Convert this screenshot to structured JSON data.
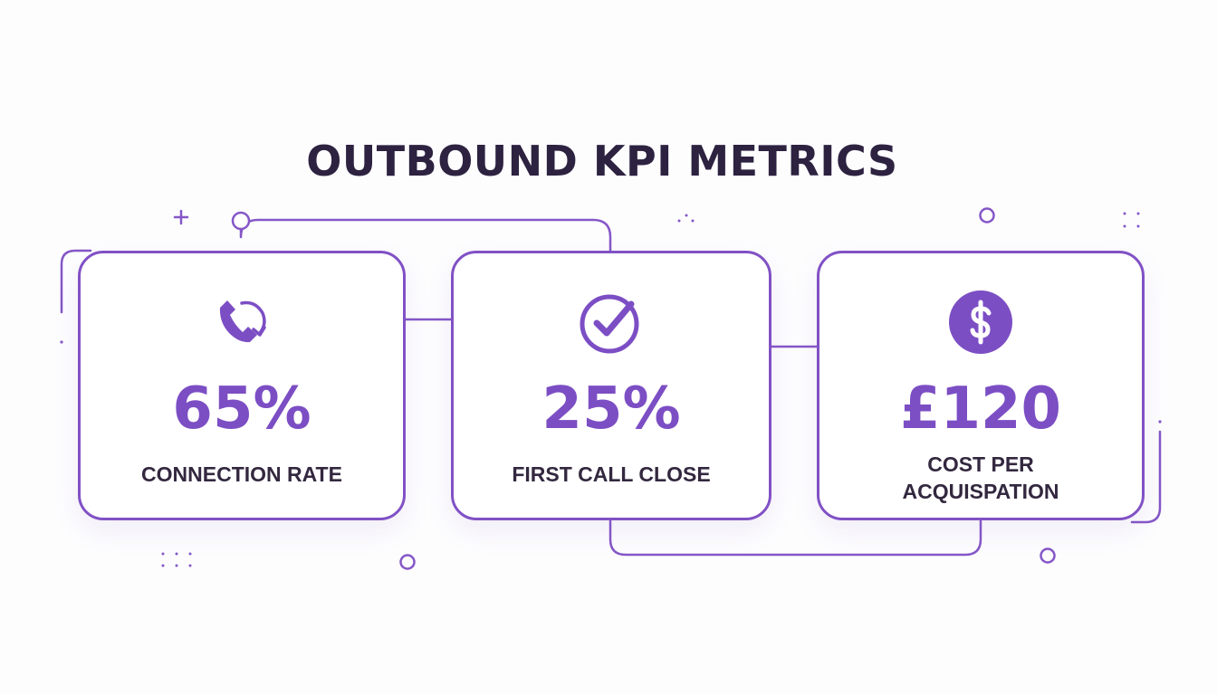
{
  "title": "OUTBOUND KPI METRICS",
  "colors": {
    "accent": "#7c4ec4",
    "title": "#2d2240",
    "label": "#33283f",
    "background": "#fdfdfe"
  },
  "metrics": [
    {
      "value": "65%",
      "label": "CONNECTION RATE",
      "icon": "phone-refresh-icon"
    },
    {
      "value": "25%",
      "label": "FIRST CALL CLOSE",
      "icon": "check-circle-icon"
    },
    {
      "value": "£120",
      "label": "COST PER ACQUISPATION",
      "icon": "dollar-circle-icon"
    }
  ]
}
